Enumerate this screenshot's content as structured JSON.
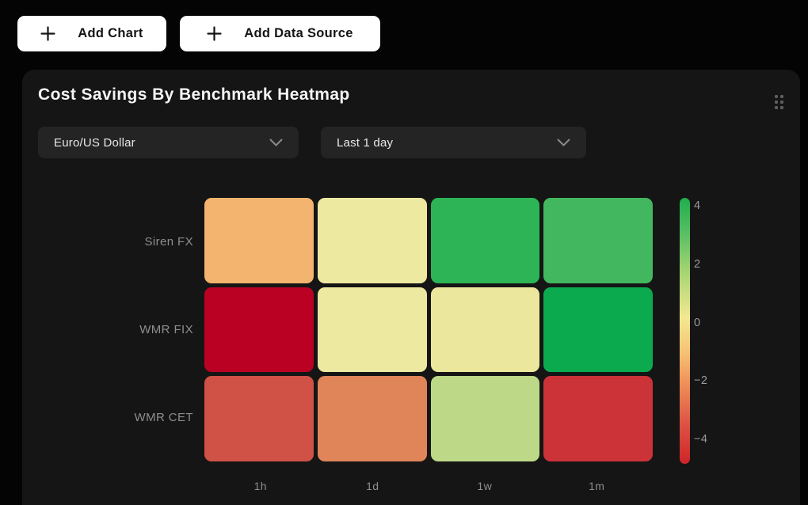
{
  "toolbar": {
    "add_chart_label": "Add Chart",
    "add_data_source_label": "Add Data Source"
  },
  "card": {
    "title": "Cost Savings By Benchmark Heatmap",
    "filters": [
      {
        "name": "currency-pair",
        "value": "Euro/US Dollar"
      },
      {
        "name": "time-range",
        "value": "Last 1 day"
      }
    ]
  },
  "chart_data": {
    "type": "heatmap",
    "title": "Cost Savings By Benchmark Heatmap",
    "x_categories": [
      "1h",
      "1d",
      "1w",
      "1m"
    ],
    "y_categories": [
      "Siren FX",
      "WMR FIX",
      "WMR CET"
    ],
    "values": [
      [
        -1.6,
        0.2,
        3.3,
        2.9
      ],
      [
        -4.2,
        0.2,
        0.3,
        3.6
      ],
      [
        -3.0,
        -2.2,
        1.2,
        -3.3
      ]
    ],
    "cell_colors": [
      [
        "#f2b46e",
        "#ede9a0",
        "#2db456",
        "#43b75f"
      ],
      [
        "#ba0124",
        "#ede9a0",
        "#ebe79c",
        "#0caa4e"
      ],
      [
        "#d05247",
        "#e08459",
        "#bdd987",
        "#cb3338"
      ]
    ],
    "colorscale": "RdYlGn",
    "grid": false,
    "colorbar": {
      "position": "right",
      "ticks": [
        "4",
        "2",
        "0",
        "−2",
        "−4"
      ],
      "min": -4.5,
      "max": 4.5,
      "gradient_top_to_bottom": [
        "#1fae4d 0%",
        "#52bd62 12%",
        "#a6d573 28%",
        "#f3e891 45%",
        "#f6c375 58%",
        "#ef8f58 70%",
        "#dd5345 85%",
        "#cf2428 100%"
      ]
    }
  },
  "colors": {
    "page_bg": "#040404",
    "card_bg": "#151515",
    "dropdown_bg": "#242424",
    "button_bg": "#ffffff",
    "button_text": "#141414",
    "title_text": "#f4f4f4",
    "axis_label_text": "#8e8e8e",
    "tick_text": "#9a9a9a"
  }
}
